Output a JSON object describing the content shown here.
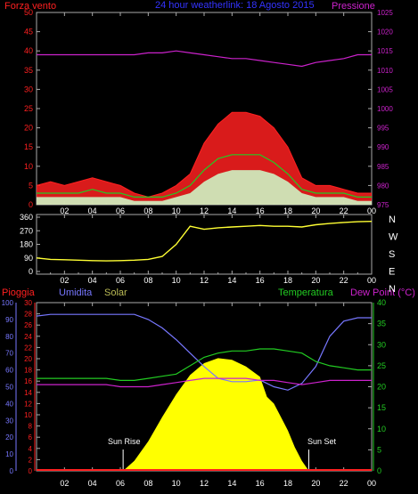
{
  "chart_data": [
    {
      "type": "line",
      "title": "24 hour weatherlink: 18 Agosto 2015",
      "ylabel_left": "Forza vento",
      "ylabel_right": "Pressione",
      "ylim_left": [
        0,
        50
      ],
      "yticks_left": [
        "0",
        "5",
        "10",
        "15",
        "20",
        "25",
        "30",
        "35",
        "40",
        "45",
        "50"
      ],
      "ylim_right": [
        975,
        1025
      ],
      "yticks_right": [
        "975",
        "980",
        "985",
        "990",
        "995",
        "1000",
        "1005",
        "1010",
        "1015",
        "1020",
        "1025"
      ],
      "x_ticks": [
        "02",
        "04",
        "06",
        "08",
        "10",
        "12",
        "14",
        "16",
        "18",
        "20",
        "22",
        "00"
      ],
      "colors": {
        "gust": "#ff2020",
        "avg": "#22cc22",
        "wind": "#ccffcc",
        "pressure": "#cc22cc"
      },
      "x_hours": [
        0,
        1,
        2,
        3,
        4,
        5,
        6,
        7,
        8,
        9,
        10,
        11,
        12,
        13,
        14,
        15,
        16,
        17,
        18,
        19,
        20,
        21,
        22,
        23,
        24
      ],
      "series": [
        {
          "values": [
            5,
            6,
            5,
            6,
            7,
            6,
            5,
            3,
            2,
            3,
            5,
            8,
            16,
            21,
            24,
            24,
            23,
            20,
            15,
            7,
            5,
            5,
            4,
            3,
            3
          ]
        },
        {
          "values": [
            3,
            3,
            3,
            3,
            4,
            3,
            3,
            2,
            2,
            2,
            3,
            5,
            9,
            12,
            13,
            13,
            13,
            11,
            8,
            4,
            3,
            3,
            3,
            2,
            2
          ]
        },
        {
          "values": [
            2,
            2,
            2,
            2,
            2,
            2,
            2,
            1,
            1,
            1,
            2,
            3,
            6,
            8,
            9,
            9,
            9,
            8,
            6,
            3,
            2,
            2,
            2,
            1,
            1
          ]
        },
        {
          "values": [
            1014,
            1014,
            1014,
            1014,
            1014,
            1014,
            1014,
            1014,
            1014.5,
            1014.5,
            1015,
            1014.5,
            1014,
            1013.5,
            1013,
            1013,
            1012.5,
            1012,
            1011.5,
            1011,
            1012,
            1012.5,
            1013,
            1014,
            1014
          ]
        }
      ]
    },
    {
      "type": "line",
      "ylim": [
        0,
        360
      ],
      "yticks": [
        "0",
        "90",
        "180",
        "270",
        "360"
      ],
      "compass_labels": [
        "N",
        "W",
        "S",
        "E",
        "N"
      ],
      "x_ticks": [
        "02",
        "04",
        "06",
        "08",
        "10",
        "12",
        "14",
        "16",
        "18",
        "20",
        "22",
        "00"
      ],
      "color": "#ffff33",
      "x_hours": [
        0,
        1,
        2,
        3,
        4,
        5,
        6,
        7,
        8,
        9,
        10,
        11,
        12,
        13,
        14,
        15,
        16,
        17,
        18,
        19,
        20,
        21,
        22,
        23,
        24
      ],
      "series": [
        {
          "values": [
            90,
            80,
            78,
            75,
            72,
            70,
            72,
            75,
            80,
            100,
            180,
            300,
            280,
            290,
            295,
            300,
            305,
            300,
            300,
            295,
            310,
            318,
            325,
            330,
            332
          ]
        }
      ]
    },
    {
      "type": "line",
      "labels": {
        "rain": "Pioggia",
        "humidity": "Umidita",
        "solar": "Solar",
        "temperature": "Temperatura",
        "dew": "Dew Point (°C)"
      },
      "sunrise_label": "Sun Rise",
      "sunset_label": "Sun Set",
      "ylim_humidity": [
        0,
        100
      ],
      "yticks_humidity": [
        "0",
        "10",
        "20",
        "30",
        "40",
        "50",
        "60",
        "70",
        "80",
        "90",
        "100"
      ],
      "ylim_rain": [
        0,
        30
      ],
      "yticks_rain": [
        "0",
        "2",
        "4",
        "6",
        "8",
        "10",
        "12",
        "14",
        "16",
        "18",
        "20",
        "22",
        "24",
        "26",
        "28",
        "30"
      ],
      "ylim_temperature": [
        0,
        40
      ],
      "yticks_temperature": [
        "0",
        "5",
        "10",
        "15",
        "20",
        "25",
        "30",
        "35",
        "40"
      ],
      "x_ticks": [
        "02",
        "04",
        "06",
        "08",
        "10",
        "12",
        "14",
        "16",
        "18",
        "20",
        "22",
        "00"
      ],
      "colors": {
        "rain": "#ff2020",
        "humidity": "#7777ff",
        "solar": "#ffff00",
        "temperature": "#22cc22",
        "dew": "#cc22cc",
        "rain_axis": "#ff2020",
        "humidity_axis": "#7777ff",
        "temp_axis": "#22cc22"
      },
      "x_hours": [
        0,
        1,
        2,
        3,
        4,
        5,
        6,
        7,
        8,
        9,
        10,
        11,
        12,
        13,
        14,
        15,
        16,
        17,
        18,
        19,
        20,
        21,
        22,
        23,
        24
      ],
      "series": [
        {
          "values": [
            92,
            93,
            93,
            93,
            93,
            93,
            93,
            93,
            90,
            85,
            78,
            70,
            62,
            55,
            53,
            53,
            54,
            50,
            48,
            52,
            62,
            80,
            89,
            91,
            91
          ]
        },
        {
          "values": [
            22,
            22,
            22,
            22,
            22,
            22,
            21.5,
            21.5,
            22,
            22.5,
            23,
            25,
            27,
            28,
            28.5,
            28.5,
            29,
            29,
            28.5,
            28,
            26,
            25,
            24.5,
            24,
            24
          ]
        },
        {
          "values": [
            20.5,
            20.5,
            20.5,
            20.5,
            20.5,
            20.5,
            20,
            20,
            20,
            20.5,
            21,
            21.5,
            22,
            22,
            22,
            22,
            21.5,
            21.5,
            21,
            20.5,
            21,
            21.5,
            21.5,
            21.5,
            21.5
          ]
        },
        {
          "values": [
            0,
            0,
            0,
            0,
            0,
            0,
            0,
            0,
            0,
            0,
            0,
            0,
            0,
            0,
            0,
            0,
            0,
            0,
            0,
            0,
            0,
            0,
            0,
            0,
            0
          ]
        }
      ],
      "solar": {
        "x_hours": [
          6.2,
          7,
          8,
          9,
          10,
          11,
          12,
          13,
          14,
          15,
          16,
          16.5,
          17,
          17.5,
          18,
          18.5,
          19,
          19.5
        ],
        "values": [
          0,
          60,
          175,
          320,
          455,
          570,
          640,
          670,
          660,
          620,
          560,
          440,
          400,
          320,
          240,
          140,
          60,
          0
        ],
        "ylim": [
          0,
          1000
        ]
      }
    }
  ]
}
